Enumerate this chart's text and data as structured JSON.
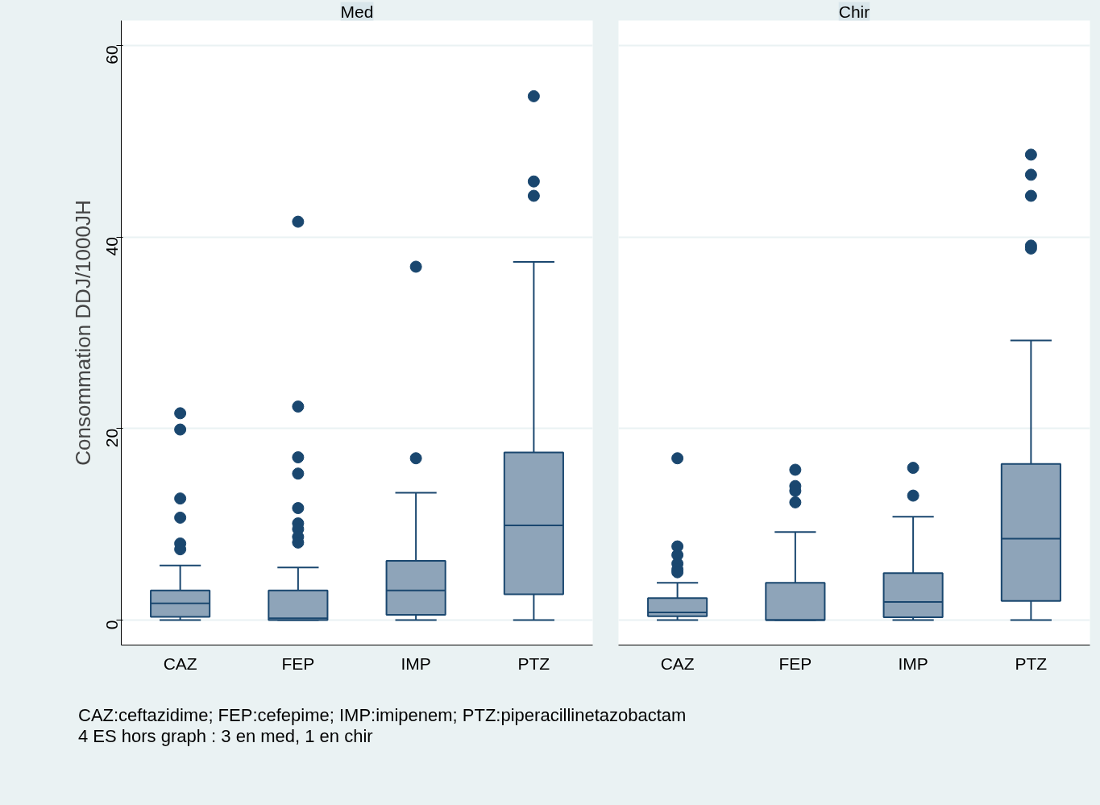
{
  "chart_data": [
    {
      "type": "box",
      "title": "Med",
      "ylabel": "Consommation DDJ/1000JH",
      "categories": [
        "CAZ",
        "FEP",
        "IMP",
        "PTZ"
      ],
      "color": "#8ea4b9",
      "marker": "circle",
      "grid": "y",
      "ylim": [
        -2.6,
        62.6
      ],
      "yticks": [
        0,
        20,
        40,
        60
      ],
      "boxes": [
        {
          "low": 0,
          "q1": 0.35,
          "median": 1.75,
          "q3": 3.1,
          "high": 5.7,
          "outliers": [
            21.6,
            19.9,
            12.7,
            10.7,
            8.0,
            7.4
          ]
        },
        {
          "low": 0,
          "q1": 0,
          "median": 0.2,
          "q3": 3.1,
          "high": 5.5,
          "outliers": [
            41.6,
            22.3,
            17.0,
            15.3,
            11.7,
            10.1,
            9.5,
            8.7,
            8.1
          ]
        },
        {
          "low": 0,
          "q1": 0.55,
          "median": 3.1,
          "q3": 6.2,
          "high": 13.3,
          "outliers": [
            36.9,
            16.9
          ]
        },
        {
          "low": 0,
          "q1": 2.7,
          "median": 9.9,
          "q3": 17.5,
          "high": 37.4,
          "outliers": [
            54.7,
            45.8,
            44.3
          ]
        }
      ],
      "annotations": [
        "CAZ:ceftazidime; FEP:cefepime; IMP:imipenem; PTZ:piperacillinetazobactam",
        "4 ES hors graph : 3 en med, 1 en chir"
      ]
    },
    {
      "type": "box",
      "title": "Chir",
      "categories": [
        "CAZ",
        "FEP",
        "IMP",
        "PTZ"
      ],
      "color": "#8ea4b9",
      "marker": "circle",
      "grid": "y",
      "ylim": [
        -2.6,
        62.6
      ],
      "yticks": [
        0,
        20,
        40,
        60
      ],
      "tick_labels": "x",
      "boxes": [
        {
          "low": 0,
          "q1": 0.4,
          "median": 0.8,
          "q3": 2.3,
          "high": 3.9,
          "outliers": [
            16.9,
            7.7,
            6.8,
            5.9,
            5.3,
            5.0
          ]
        },
        {
          "low": 0,
          "q1": 0,
          "median": 0,
          "q3": 3.9,
          "high": 9.2,
          "outliers": [
            15.7,
            14.0,
            13.5,
            12.3
          ]
        },
        {
          "low": 0,
          "q1": 0.3,
          "median": 1.9,
          "q3": 4.9,
          "high": 10.8,
          "outliers": [
            15.9,
            13.0
          ]
        },
        {
          "low": 0,
          "q1": 2.0,
          "median": 8.5,
          "q3": 16.3,
          "high": 29.2,
          "outliers": [
            48.6,
            46.5,
            44.3,
            39.1,
            38.8
          ]
        }
      ]
    }
  ]
}
